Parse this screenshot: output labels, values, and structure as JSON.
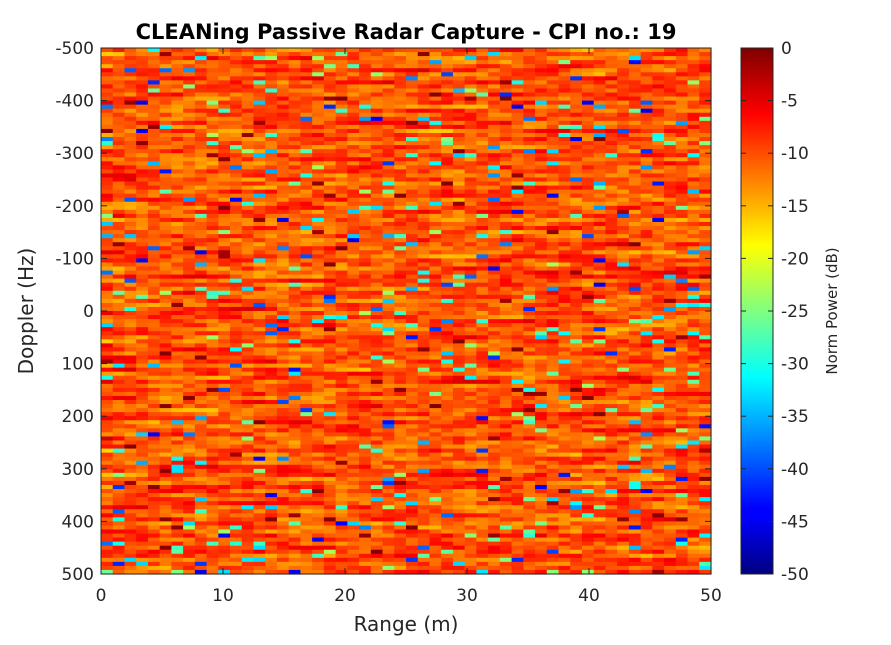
{
  "chart_data": {
    "type": "heatmap",
    "title": "CLEANing Passive Radar Capture - CPI no.: 19",
    "xlabel": "Range (m)",
    "ylabel": "Doppler (Hz)",
    "xlim": [
      0,
      50
    ],
    "ylim": [
      -500,
      500
    ],
    "y_direction": "reverse",
    "x_ticks": [
      "0",
      "10",
      "20",
      "30",
      "40",
      "50"
    ],
    "y_ticks": [
      "-500",
      "-400",
      "-300",
      "-200",
      "-100",
      "0",
      "100",
      "200",
      "300",
      "400",
      "500"
    ],
    "colormap": "jet",
    "colorbar": {
      "label": "Norm Power (dB)",
      "range": [
        -50,
        0
      ],
      "ticks": [
        "0",
        "-5",
        "-10",
        "-15",
        "-20",
        "-25",
        "-30",
        "-35",
        "-40",
        "-45",
        "-50"
      ],
      "placement": "right"
    },
    "grid": false,
    "typical_power_db": [
      -20,
      -3
    ]
  }
}
